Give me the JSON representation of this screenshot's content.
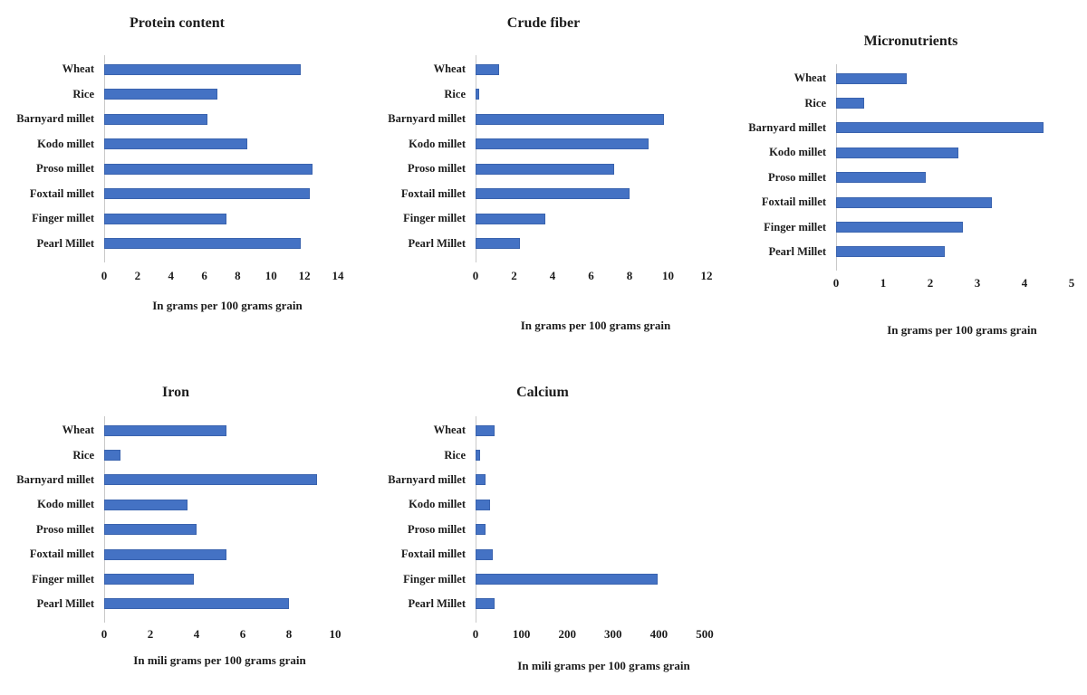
{
  "figure": {
    "background_color": "#ffffff",
    "bar_color": "#4472c4",
    "bar_border_color": "#3a63ae",
    "axis_line_color": "#c9c9c9",
    "text_color": "#1c1c1c"
  },
  "chart_data": [
    {
      "id": "protein",
      "type": "bar",
      "orientation": "horizontal",
      "title": "Protein content",
      "xlabel": "In grams per 100 grams grain",
      "categories": [
        "Wheat",
        "Rice",
        "Barnyard millet",
        "Kodo millet",
        "Proso millet",
        "Foxtail millet",
        "Finger millet",
        "Pearl Millet"
      ],
      "values": [
        11.8,
        6.8,
        6.2,
        8.6,
        12.5,
        12.3,
        7.3,
        11.8
      ],
      "xlim": [
        0,
        14
      ],
      "xticks": [
        0,
        2,
        4,
        6,
        8,
        10,
        12,
        14
      ],
      "grid": false,
      "legend": false
    },
    {
      "id": "fiber",
      "type": "bar",
      "orientation": "horizontal",
      "title": "Crude fiber",
      "xlabel": "In grams per 100 grams grain",
      "categories": [
        "Wheat",
        "Rice",
        "Barnyard millet",
        "Kodo millet",
        "Proso millet",
        "Foxtail millet",
        "Finger millet",
        "Pearl Millet"
      ],
      "values": [
        1.2,
        0.2,
        9.8,
        9.0,
        7.2,
        8.0,
        3.6,
        2.3
      ],
      "xlim": [
        0,
        12
      ],
      "xticks": [
        0,
        2,
        4,
        6,
        8,
        10,
        12
      ],
      "grid": false,
      "legend": false
    },
    {
      "id": "micro",
      "type": "bar",
      "orientation": "horizontal",
      "title": "Micronutrients",
      "xlabel": "In grams per 100 grams grain",
      "categories": [
        "Wheat",
        "Rice",
        "Barnyard millet",
        "Kodo millet",
        "Proso millet",
        "Foxtail millet",
        "Finger millet",
        "Pearl Millet"
      ],
      "values": [
        1.5,
        0.6,
        4.4,
        2.6,
        1.9,
        3.3,
        2.7,
        2.3
      ],
      "xlim": [
        0,
        5
      ],
      "xticks": [
        0,
        1,
        2,
        3,
        4,
        5
      ],
      "grid": false,
      "legend": false
    },
    {
      "id": "iron",
      "type": "bar",
      "orientation": "horizontal",
      "title": "Iron",
      "xlabel": "In mili grams per 100 grams grain",
      "categories": [
        "Wheat",
        "Rice",
        "Barnyard millet",
        "Kodo millet",
        "Proso millet",
        "Foxtail millet",
        "Finger millet",
        "Pearl Millet"
      ],
      "values": [
        5.3,
        0.7,
        9.2,
        3.6,
        4.0,
        5.3,
        3.9,
        8.0
      ],
      "xlim": [
        0,
        10
      ],
      "xticks": [
        0,
        2,
        4,
        6,
        8,
        10
      ],
      "grid": false,
      "legend": false
    },
    {
      "id": "calcium",
      "type": "bar",
      "orientation": "horizontal",
      "title": "Calcium",
      "xlabel": "In mili grams per 100 grams grain",
      "categories": [
        "Wheat",
        "Rice",
        "Barnyard millet",
        "Kodo millet",
        "Proso millet",
        "Foxtail millet",
        "Finger millet",
        "Pearl Millet"
      ],
      "values": [
        41,
        10,
        22,
        31,
        22,
        38,
        398,
        42
      ],
      "xlim": [
        0,
        500
      ],
      "xticks": [
        0,
        100,
        200,
        300,
        400,
        500
      ],
      "grid": false,
      "legend": false
    }
  ]
}
